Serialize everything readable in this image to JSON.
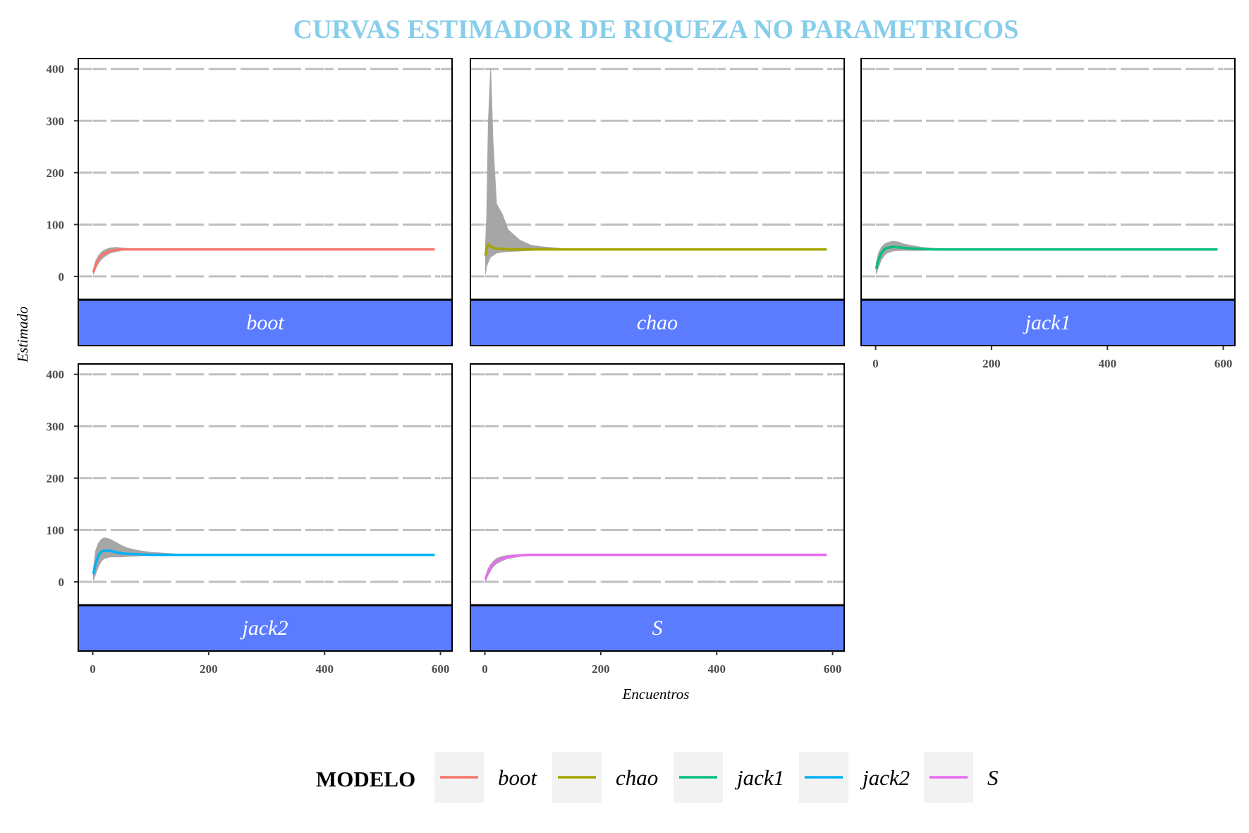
{
  "chart_data": {
    "type": "line",
    "title": "CURVAS ESTIMADOR DE RIQUEZA NO PARAMETRICOS",
    "xlabel": "Encuentros",
    "ylabel": "Estimado",
    "xlim": [
      -25,
      620
    ],
    "ylim": [
      -45,
      420
    ],
    "x_ticks": [
      0,
      200,
      400,
      600
    ],
    "y_ticks": [
      0,
      100,
      200,
      300,
      400
    ],
    "grid": true,
    "legend": {
      "title": "MODELO",
      "placement": "bottom"
    },
    "ribbon_color": "#a6a6a6",
    "strip_fill": "#5b7cff",
    "title_color": "#87ceeb",
    "series": [
      {
        "name": "boot",
        "color": "#f8766d",
        "x": [
          1,
          5,
          10,
          15,
          20,
          30,
          40,
          50,
          60,
          80,
          100,
          150,
          200,
          300,
          400,
          500,
          590
        ],
        "y": [
          8,
          22,
          33,
          40,
          44,
          49,
          51,
          52,
          52,
          52,
          52,
          52,
          52,
          52,
          52,
          52,
          52
        ],
        "lower": [
          4,
          15,
          26,
          33,
          38,
          45,
          48,
          50,
          51,
          51.5,
          52,
          52,
          52,
          52,
          52,
          52,
          52
        ],
        "upper": [
          13,
          30,
          40,
          47,
          51,
          55,
          56,
          55,
          54,
          53,
          53,
          52,
          52,
          52,
          52,
          52,
          52
        ]
      },
      {
        "name": "chao",
        "color": "#a3a500",
        "x": [
          1,
          3,
          6,
          10,
          14,
          20,
          30,
          40,
          60,
          80,
          100,
          150,
          200,
          300,
          400,
          500,
          590
        ],
        "y": [
          40,
          55,
          62,
          58,
          55,
          54,
          53,
          52,
          52,
          52,
          52,
          52,
          52,
          52,
          52,
          52,
          52
        ],
        "lower": [
          5,
          20,
          28,
          38,
          40,
          45,
          47,
          48,
          49,
          50,
          51,
          52,
          52,
          52,
          52,
          52,
          52
        ],
        "upper": [
          60,
          110,
          300,
          400,
          260,
          140,
          120,
          90,
          70,
          60,
          57,
          52,
          52,
          52,
          52,
          52,
          52
        ]
      },
      {
        "name": "jack1",
        "color": "#00bf7d",
        "x": [
          1,
          5,
          10,
          15,
          20,
          30,
          40,
          50,
          60,
          80,
          100,
          150,
          200,
          300,
          400,
          500,
          590
        ],
        "y": [
          15,
          32,
          45,
          52,
          55,
          57,
          56,
          55,
          54,
          53,
          52,
          52,
          52,
          52,
          52,
          52,
          52
        ],
        "lower": [
          5,
          18,
          32,
          40,
          45,
          49,
          50,
          50,
          50,
          50,
          51,
          52,
          52,
          52,
          52,
          52,
          52
        ],
        "upper": [
          25,
          45,
          56,
          62,
          65,
          68,
          66,
          62,
          60,
          56,
          54,
          52,
          52,
          52,
          52,
          52,
          52
        ]
      },
      {
        "name": "jack2",
        "color": "#00b0f6",
        "x": [
          1,
          5,
          10,
          15,
          20,
          30,
          40,
          50,
          60,
          80,
          100,
          150,
          200,
          300,
          400,
          500,
          590
        ],
        "y": [
          15,
          35,
          52,
          58,
          60,
          60,
          57,
          55,
          54,
          53,
          52,
          52,
          52,
          52,
          52,
          52,
          52
        ],
        "lower": [
          3,
          15,
          30,
          40,
          45,
          48,
          48,
          48,
          49,
          50,
          51,
          52,
          52,
          52,
          52,
          52,
          52
        ],
        "upper": [
          25,
          60,
          75,
          82,
          85,
          82,
          76,
          70,
          65,
          60,
          57,
          53,
          52,
          52,
          52,
          52,
          52
        ]
      },
      {
        "name": "S",
        "color": "#e76bf3",
        "x": [
          1,
          5,
          10,
          15,
          20,
          30,
          40,
          50,
          60,
          70,
          80,
          100,
          150,
          200,
          300,
          400,
          500,
          590
        ],
        "y": [
          5,
          18,
          28,
          35,
          40,
          45,
          48,
          50,
          51,
          51.5,
          52,
          52,
          52,
          52,
          52,
          52,
          52,
          52
        ],
        "lower": [
          1,
          12,
          22,
          30,
          35,
          41,
          45,
          47,
          49,
          50,
          51,
          52,
          52,
          52,
          52,
          52,
          52,
          52
        ],
        "upper": [
          9,
          24,
          34,
          40,
          45,
          49,
          51,
          52,
          52,
          52,
          52,
          52,
          52,
          52,
          52,
          52,
          52,
          52
        ]
      }
    ]
  }
}
